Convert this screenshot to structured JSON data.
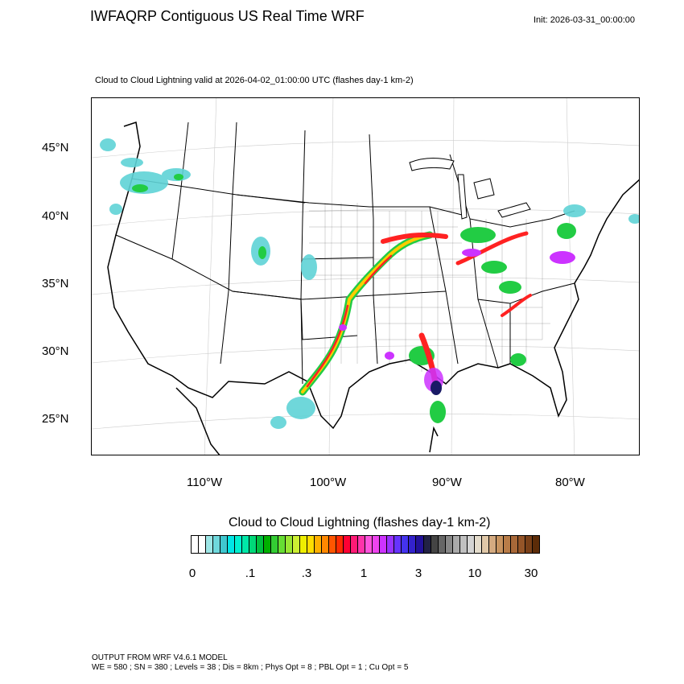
{
  "title": "IWFAQRP Contiguous US Real Time WRF",
  "init": "Init: 2026-03-31_00:00:00",
  "subtitle": "Cloud to Cloud Lightning valid at 2026-04-02_01:00:00 UTC   (flashes day-1 km-2)",
  "lat_labels": [
    "45°N",
    "40°N",
    "35°N",
    "30°N",
    "25°N"
  ],
  "lon_labels": [
    "110°W",
    "100°W",
    "90°W",
    "80°W"
  ],
  "colorbar": {
    "title": "Cloud to Cloud Lightning  (flashes day-1 km-2)",
    "ticks": [
      "0",
      ".1",
      ".3",
      "1",
      "3",
      "10",
      "30"
    ],
    "colors": [
      "#ffffff",
      "#ffffff",
      "#9de6e6",
      "#6fd8dc",
      "#3fc7cf",
      "#00e5e5",
      "#00f0d0",
      "#00e8a8",
      "#00d878",
      "#00c040",
      "#00b000",
      "#33cc33",
      "#66dd33",
      "#99e633",
      "#ccee33",
      "#eeee00",
      "#ffdd00",
      "#ffb000",
      "#ff8800",
      "#ff5500",
      "#ff2a00",
      "#ff0033",
      "#ff1a75",
      "#ff33aa",
      "#ff55dd",
      "#ee44ee",
      "#cc33ff",
      "#9933ff",
      "#6633ff",
      "#4433ee",
      "#3322cc",
      "#221199",
      "#222244",
      "#444444",
      "#666666",
      "#888888",
      "#aaaaaa",
      "#c0c0c0",
      "#d4d4d4",
      "#e4dccc",
      "#e0c8a8",
      "#d4aa80",
      "#c89460",
      "#b87c48",
      "#a86838",
      "#955528",
      "#7a4018",
      "#5c2c08"
    ]
  },
  "footer": {
    "line1": "OUTPUT FROM WRF V4.6.1 MODEL",
    "line2": "WE = 580 ; SN = 380 ; Levels = 38 ; Dis = 8km ; Phys Opt = 8 ; PBL Opt = 1 ; Cu Opt = 5"
  },
  "legend_colors": {
    "light": "#5fd3d6",
    "moderate": "#22cc44",
    "strong": "#ffcc00",
    "intense": "#ff2222",
    "extreme": "#cc33ff",
    "max": "#1a1a66"
  }
}
